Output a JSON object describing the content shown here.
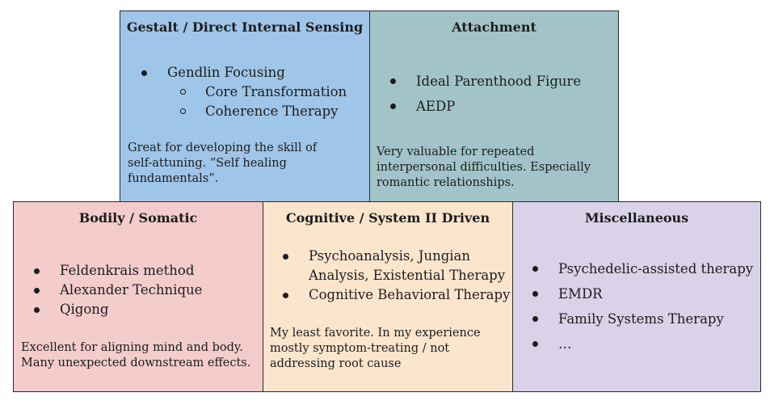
{
  "boxes": {
    "gestalt": {
      "title": "Gestalt / Direct Internal Sensing",
      "item": "Gendlin Focusing",
      "subitems": [
        "Core Transformation",
        "Coherence Therapy"
      ],
      "note": "Great for developing the skill of self-attuning. “Self healing fundamentals”.",
      "color": "#9fc5e8"
    },
    "attachment": {
      "title": "Attachment",
      "items": [
        "Ideal Parenthood Figure",
        "AEDP"
      ],
      "note": "Very valuable for repeated interpersonal difficulties. Especially romantic relationships.",
      "color": "#a2c4c9"
    },
    "bodily": {
      "title": "Bodily / Somatic",
      "items": [
        "Feldenkrais method",
        "Alexander Technique",
        "Qigong"
      ],
      "note": "Excellent for aligning mind and body. Many unexpected downstream effects.",
      "color": "#f4cccc"
    },
    "cognitive": {
      "title": "Cognitive / System II Driven",
      "items": [
        "Psychoanalysis, Jungian Analysis, Existential Therapy",
        "Cognitive Behavioral Therapy"
      ],
      "note": "My least favorite. In my experience mostly symptom-treating / not addressing root cause",
      "color": "#fce5cd"
    },
    "misc": {
      "title": "Miscellaneous",
      "items": [
        "Psychedelic-assisted therapy",
        "EMDR",
        "Family Systems Therapy",
        "…"
      ],
      "color": "#d9d2e9"
    }
  }
}
